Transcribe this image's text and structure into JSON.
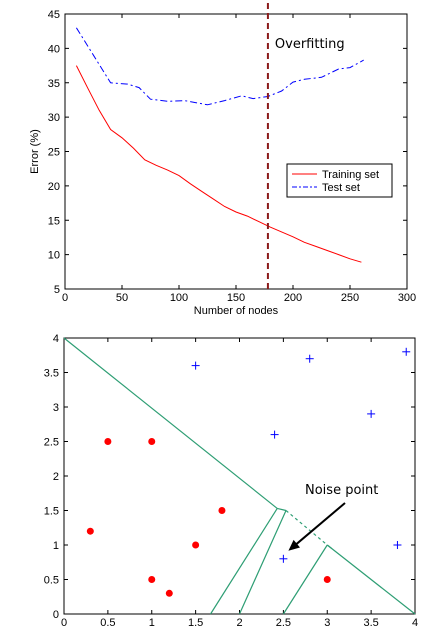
{
  "chart_data": [
    {
      "type": "line",
      "xlabel": "Number of nodes",
      "ylabel": "Error (%)",
      "xlim": [
        0,
        300
      ],
      "ylim": [
        5,
        45
      ],
      "xticks": [
        0,
        50,
        100,
        150,
        200,
        250,
        300
      ],
      "yticks": [
        5,
        10,
        15,
        20,
        25,
        30,
        35,
        40,
        45
      ],
      "grid": false,
      "legend_position": "middle-right",
      "annotation": {
        "text": "Overfitting",
        "x": 178,
        "color": "#8b1a1a"
      },
      "series": [
        {
          "name": "Training set",
          "color": "#ff0000",
          "style": "solid",
          "x": [
            10,
            20,
            30,
            40,
            50,
            60,
            70,
            80,
            90,
            100,
            110,
            120,
            130,
            140,
            150,
            160,
            170,
            180,
            190,
            200,
            210,
            220,
            230,
            240,
            250,
            260
          ],
          "y": [
            37.5,
            34.2,
            31.0,
            28.2,
            27.0,
            25.5,
            23.8,
            23.0,
            22.3,
            21.5,
            20.3,
            19.2,
            18.1,
            17.0,
            16.2,
            15.6,
            14.8,
            14.0,
            13.3,
            12.6,
            11.8,
            11.2,
            10.6,
            10.0,
            9.4,
            8.9
          ]
        },
        {
          "name": "Test set",
          "color": "#0000ff",
          "style": "dashdot",
          "x": [
            10,
            25,
            40,
            55,
            65,
            75,
            90,
            105,
            115,
            125,
            140,
            155,
            165,
            178,
            190,
            200,
            210,
            225,
            240,
            250,
            262
          ],
          "y": [
            43.0,
            39.0,
            35.0,
            34.8,
            34.3,
            32.6,
            32.3,
            32.4,
            32.1,
            31.8,
            32.4,
            33.1,
            32.7,
            33.0,
            33.8,
            35.1,
            35.5,
            35.8,
            37.0,
            37.2,
            38.3
          ]
        }
      ]
    },
    {
      "type": "scatter",
      "xlim": [
        0,
        4
      ],
      "ylim": [
        0,
        4
      ],
      "xticks": [
        0,
        0.5,
        1,
        1.5,
        2,
        2.5,
        3,
        3.5,
        4
      ],
      "yticks": [
        0,
        0.5,
        1,
        1.5,
        2,
        2.5,
        3,
        3.5,
        4
      ],
      "grid": false,
      "annotation": {
        "text": "Noise point",
        "x": 2.5,
        "y": 0.8
      },
      "series": [
        {
          "marker": "circle",
          "color": "#ff0000",
          "x": [
            0.3,
            0.5,
            1.0,
            1.0,
            1.2,
            1.5,
            1.8,
            3.0
          ],
          "y": [
            1.2,
            2.5,
            2.5,
            0.5,
            0.3,
            1.0,
            1.5,
            0.5
          ]
        },
        {
          "marker": "plus",
          "color": "#0000ff",
          "x": [
            1.5,
            2.4,
            2.8,
            3.5,
            3.9,
            3.8,
            2.5
          ],
          "y": [
            3.6,
            2.6,
            3.7,
            2.9,
            3.8,
            1.0,
            0.8
          ]
        }
      ],
      "boundaries": {
        "color": "#2e9e74",
        "solid": [
          [
            [
              0.0,
              4.0
            ],
            [
              2.43,
              1.53
            ]
          ],
          [
            [
              3.0,
              1.0
            ],
            [
              4.0,
              0.0
            ]
          ],
          [
            [
              1.67,
              0.0
            ],
            [
              2.43,
              1.53
            ]
          ],
          [
            [
              2.43,
              1.53
            ],
            [
              2.53,
              1.5
            ]
          ],
          [
            [
              2.53,
              1.5
            ],
            [
              2.0,
              0.0
            ]
          ],
          [
            [
              2.5,
              0.0
            ],
            [
              3.0,
              1.0
            ]
          ],
          [
            [
              3.0,
              1.0
            ],
            [
              3.05,
              0.95
            ]
          ]
        ],
        "dashed": [
          [
            [
              2.53,
              1.5
            ],
            [
              3.0,
              1.0
            ]
          ]
        ]
      }
    }
  ]
}
